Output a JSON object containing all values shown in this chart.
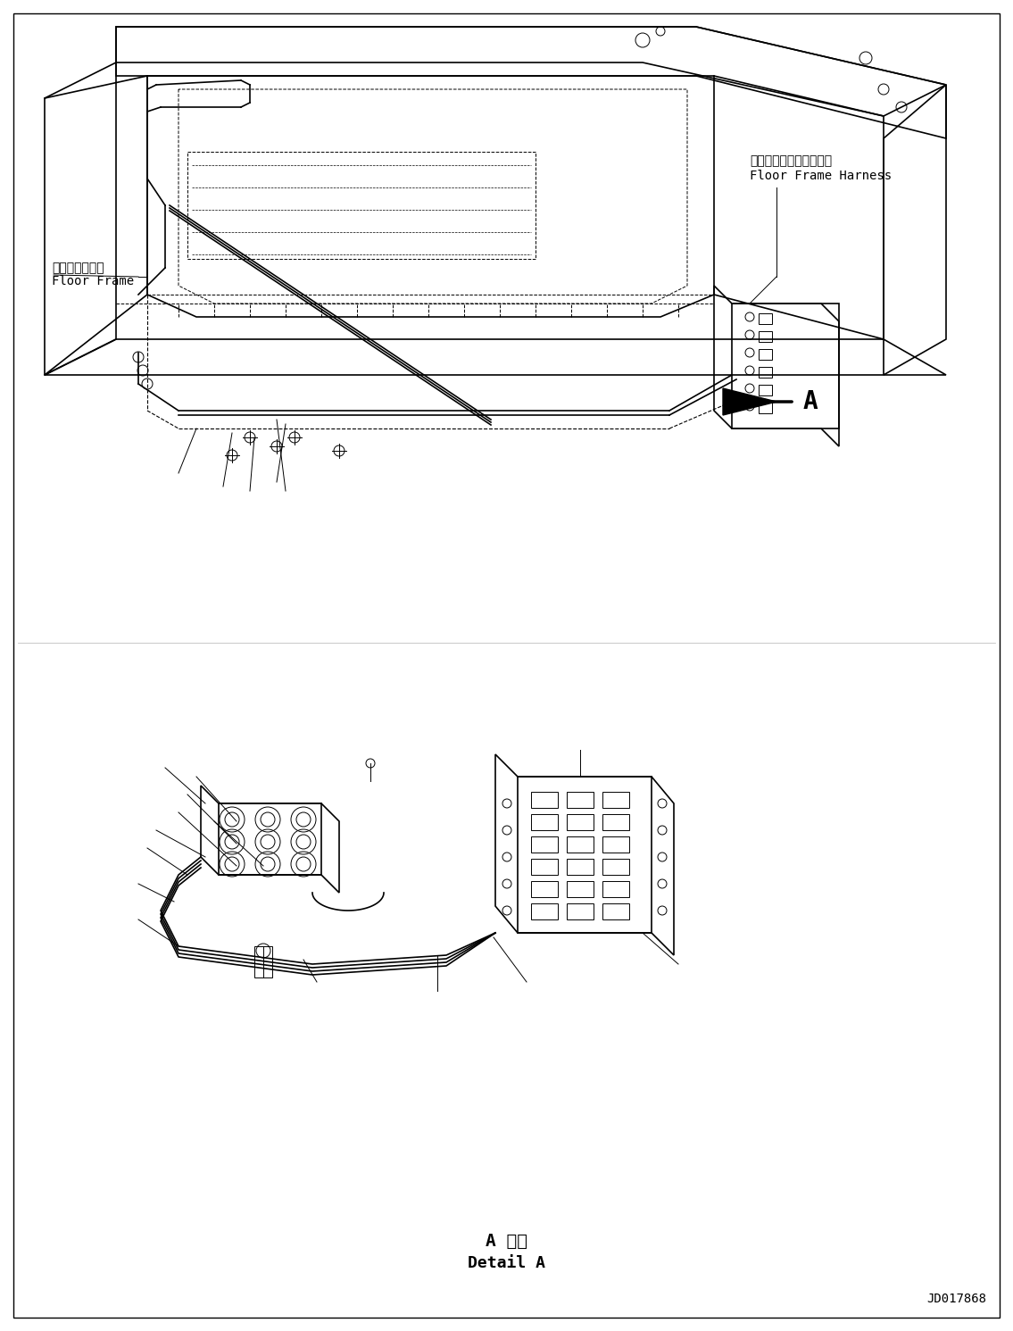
{
  "bg_color": "#ffffff",
  "line_color": "#000000",
  "title_bottom_jp": "A 詳細",
  "title_bottom_en": "Detail A",
  "label_floor_frame_jp": "フロアフレーム",
  "label_floor_frame_en": "Floor Frame",
  "label_harness_jp": "フロアフレームハーネス",
  "label_harness_en": "Floor Frame Harness",
  "label_A": "A",
  "doc_number": "JD017868",
  "fig_width": 1135,
  "fig_height": 1491,
  "dpi": 100
}
